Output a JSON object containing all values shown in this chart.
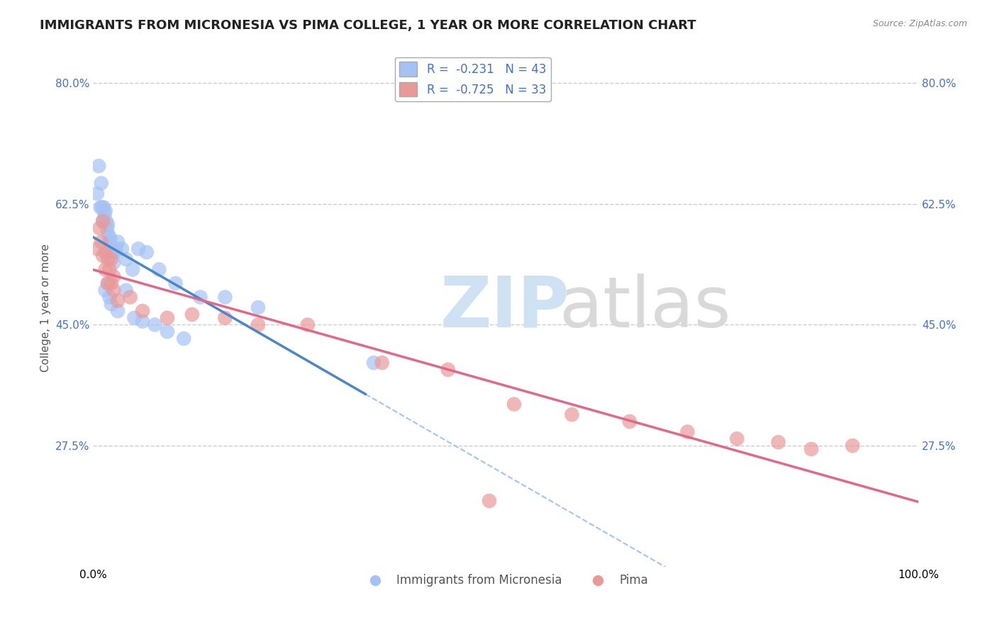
{
  "title": "IMMIGRANTS FROM MICRONESIA VS PIMA COLLEGE, 1 YEAR OR MORE CORRELATION CHART",
  "source_text": "Source: ZipAtlas.com",
  "ylabel": "College, 1 year or more",
  "xlim": [
    0.0,
    1.0
  ],
  "ylim": [
    0.1,
    0.85
  ],
  "x_tick_labels": [
    "0.0%",
    "100.0%"
  ],
  "y_tick_labels": [
    "27.5%",
    "45.0%",
    "62.5%",
    "80.0%"
  ],
  "y_tick_values": [
    0.275,
    0.45,
    0.625,
    0.8
  ],
  "grid_color": "#cccccc",
  "background_color": "#ffffff",
  "legend_r1": "R =  -0.231",
  "legend_n1": "N = 43",
  "legend_r2": "R =  -0.725",
  "legend_n2": "N = 33",
  "blue_color": "#a4c2f4",
  "pink_color": "#ea9999",
  "line_blue": "#4a86c8",
  "line_pink": "#e06888",
  "line_dashed_color": "#a4c2f4",
  "title_fontsize": 13,
  "label_fontsize": 11,
  "tick_fontsize": 11,
  "legend_fontsize": 12,
  "blue_x": [
    0.005,
    0.007,
    0.009,
    0.01,
    0.011,
    0.012,
    0.013,
    0.014,
    0.015,
    0.016,
    0.017,
    0.018,
    0.019,
    0.02,
    0.021,
    0.022,
    0.024,
    0.026,
    0.028,
    0.03,
    0.035,
    0.04,
    0.048,
    0.055,
    0.065,
    0.08,
    0.1,
    0.13,
    0.16,
    0.2,
    0.04,
    0.025,
    0.015,
    0.018,
    0.02,
    0.022,
    0.03,
    0.05,
    0.06,
    0.075,
    0.09,
    0.11,
    0.34
  ],
  "blue_y": [
    0.64,
    0.68,
    0.62,
    0.655,
    0.62,
    0.6,
    0.62,
    0.61,
    0.615,
    0.6,
    0.59,
    0.595,
    0.58,
    0.57,
    0.575,
    0.56,
    0.555,
    0.555,
    0.56,
    0.57,
    0.56,
    0.545,
    0.53,
    0.56,
    0.555,
    0.53,
    0.51,
    0.49,
    0.49,
    0.475,
    0.5,
    0.54,
    0.5,
    0.51,
    0.49,
    0.48,
    0.47,
    0.46,
    0.455,
    0.45,
    0.44,
    0.43,
    0.395
  ],
  "pink_x": [
    0.005,
    0.008,
    0.01,
    0.012,
    0.015,
    0.018,
    0.02,
    0.022,
    0.025,
    0.012,
    0.015,
    0.018,
    0.022,
    0.025,
    0.03,
    0.045,
    0.06,
    0.09,
    0.12,
    0.16,
    0.2,
    0.26,
    0.35,
    0.43,
    0.51,
    0.58,
    0.65,
    0.72,
    0.78,
    0.83,
    0.87,
    0.92,
    0.48
  ],
  "pink_y": [
    0.56,
    0.59,
    0.57,
    0.6,
    0.555,
    0.545,
    0.53,
    0.545,
    0.52,
    0.55,
    0.53,
    0.51,
    0.51,
    0.5,
    0.485,
    0.49,
    0.47,
    0.46,
    0.465,
    0.46,
    0.45,
    0.45,
    0.395,
    0.385,
    0.335,
    0.32,
    0.31,
    0.295,
    0.285,
    0.28,
    0.27,
    0.275,
    0.195
  ]
}
